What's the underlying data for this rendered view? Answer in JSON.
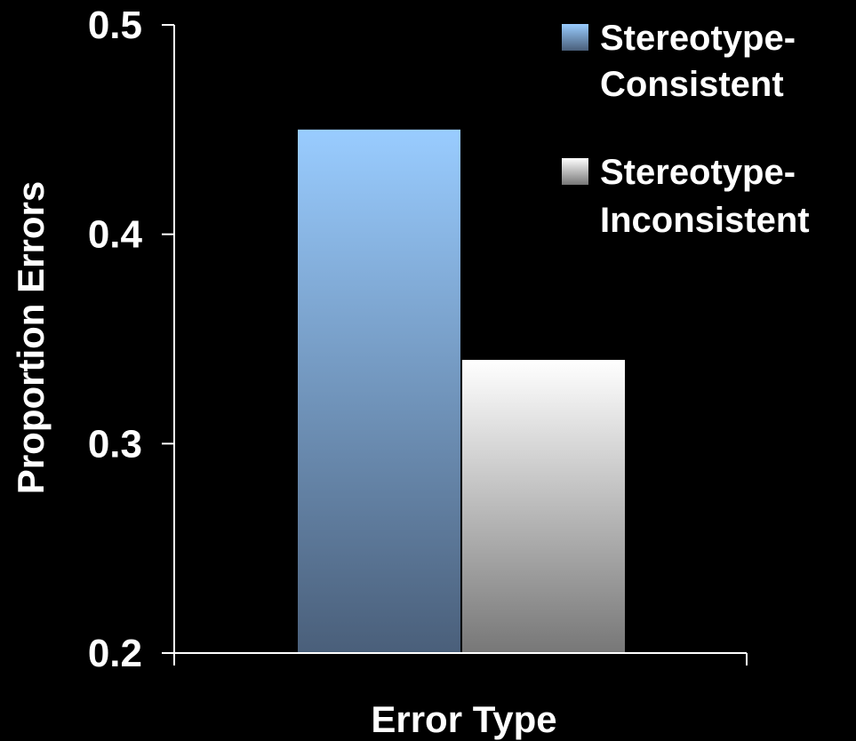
{
  "chart_data": {
    "type": "bar",
    "title": "",
    "xlabel": "Error Type",
    "ylabel": "Proportion Errors",
    "ylim": [
      0.2,
      0.5
    ],
    "yticks": [
      "0.2",
      "0.3",
      "0.4",
      "0.5"
    ],
    "categories": [
      ""
    ],
    "series": [
      {
        "name": "Stereotype-Consistent",
        "legend_lines": [
          "Stereotype-",
          "Consistent"
        ],
        "values": [
          0.45
        ],
        "color_top": "#99ccff",
        "color_bottom": "#4a5f7a"
      },
      {
        "name": "Stereotype-Inconsistent",
        "legend_lines": [
          "Stereotype-",
          "Inconsistent"
        ],
        "values": [
          0.34
        ],
        "color_top": "#ffffff",
        "color_bottom": "#777777"
      }
    ],
    "legend_position": "top-right",
    "grid": false,
    "background": "#000000",
    "axis_color": "#ffffff"
  }
}
